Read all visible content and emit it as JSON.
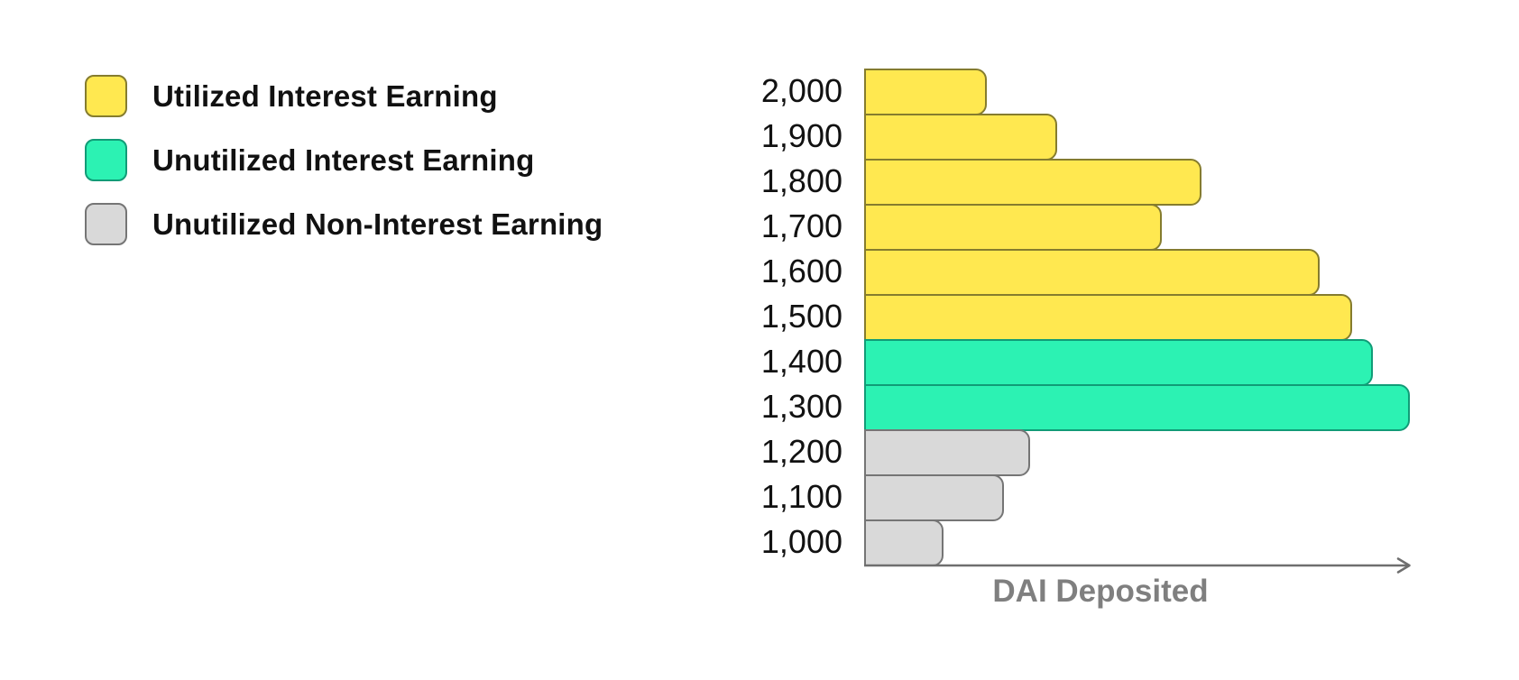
{
  "figure": {
    "background": "#ffffff",
    "axis_color": "#6e6e6e",
    "tick_label_color": "#111111",
    "axis_title_color": "#7f7f7f"
  },
  "legend": {
    "items": [
      {
        "label": "Utilized Interest Earning",
        "fill": "#FFE850",
        "border": "#857C2E"
      },
      {
        "label": "Unutilized Interest Earning",
        "fill": "#2CF2B3",
        "border": "#119C77"
      },
      {
        "label": "Unutilized Non-Interest Earning",
        "fill": "#D9D9D9",
        "border": "#757575"
      }
    ]
  },
  "chart_data": {
    "type": "bar",
    "orientation": "horizontal",
    "title": "",
    "xlabel": "DAI Deposited",
    "ylabel": "",
    "categories": [
      "2,000",
      "1,900",
      "1,800",
      "1,700",
      "1,600",
      "1,500",
      "1,400",
      "1,300",
      "1,200",
      "1,100",
      "1,000"
    ],
    "values_percent_of_max": [
      22.5,
      35.4,
      61.8,
      54.5,
      83.5,
      89.4,
      93.2,
      100,
      30.4,
      25.6,
      14.5
    ],
    "bar_groups": [
      0,
      0,
      0,
      0,
      0,
      0,
      1,
      1,
      2,
      2,
      2
    ],
    "series": [
      {
        "name": "Utilized Interest Earning",
        "color": "#FFE850",
        "border": "#857C2E"
      },
      {
        "name": "Unutilized Interest Earning",
        "color": "#2CF2B3",
        "border": "#119C77"
      },
      {
        "name": "Unutilized Non-Interest Earning",
        "color": "#D9D9D9",
        "border": "#757575"
      }
    ],
    "x_axis": {
      "numeric_scale_shown": false,
      "arrow": true
    },
    "grid": false,
    "legend_position": "top-left"
  }
}
